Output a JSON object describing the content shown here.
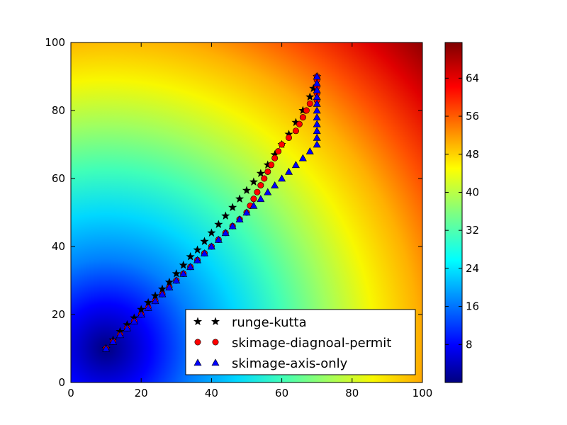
{
  "chart_data": {
    "type": "scatter",
    "title": "",
    "xlabel": "",
    "ylabel": "",
    "xlim": [
      0,
      100
    ],
    "ylim": [
      0,
      100
    ],
    "xticks": [
      "0",
      "20",
      "40",
      "60",
      "80",
      "100"
    ],
    "yticks": [
      "0",
      "20",
      "40",
      "60",
      "80",
      "100"
    ],
    "grid": false,
    "background": {
      "type": "heatmap",
      "description_value": "distance from point (10,10)",
      "colormap": "jet",
      "range": [
        0,
        127.3
      ]
    },
    "colorbar": {
      "ticks": [
        "8",
        "16",
        "24",
        "32",
        "40",
        "48",
        "56",
        "64"
      ],
      "range": [
        0,
        71.5
      ]
    },
    "legend_position": "lower-right",
    "series": [
      {
        "name": "runge-kutta",
        "marker": "star",
        "color": "#000000",
        "points": [
          [
            10,
            10
          ],
          [
            12,
            12.5
          ],
          [
            14,
            15
          ],
          [
            16,
            17
          ],
          [
            18,
            19
          ],
          [
            20,
            21.5
          ],
          [
            22,
            23.5
          ],
          [
            24,
            25.5
          ],
          [
            26,
            27.5
          ],
          [
            28,
            29.5
          ],
          [
            30,
            32
          ],
          [
            32,
            34.5
          ],
          [
            34,
            37
          ],
          [
            36,
            39
          ],
          [
            38,
            41.5
          ],
          [
            40,
            44
          ],
          [
            42,
            46.5
          ],
          [
            44,
            49
          ],
          [
            46,
            51.5
          ],
          [
            48,
            54
          ],
          [
            50,
            56.5
          ],
          [
            52,
            59
          ],
          [
            54,
            61.5
          ],
          [
            56,
            64
          ],
          [
            58,
            67
          ],
          [
            60,
            70
          ],
          [
            62,
            73
          ],
          [
            64,
            76.5
          ],
          [
            66,
            80
          ],
          [
            68,
            84
          ],
          [
            69,
            86.5
          ],
          [
            70,
            90
          ]
        ]
      },
      {
        "name": "skimage-diagnoal-permit",
        "marker": "circle",
        "color": "#ff0000",
        "points": [
          [
            10,
            10
          ],
          [
            12,
            12
          ],
          [
            14,
            14
          ],
          [
            16,
            16
          ],
          [
            18,
            18
          ],
          [
            20,
            20
          ],
          [
            22,
            22
          ],
          [
            24,
            24
          ],
          [
            26,
            26
          ],
          [
            28,
            28
          ],
          [
            30,
            30
          ],
          [
            32,
            32
          ],
          [
            34,
            34
          ],
          [
            36,
            36
          ],
          [
            38,
            38
          ],
          [
            40,
            40
          ],
          [
            42,
            42
          ],
          [
            44,
            44
          ],
          [
            46,
            46
          ],
          [
            48,
            48
          ],
          [
            50,
            50
          ],
          [
            51,
            52
          ],
          [
            52,
            54
          ],
          [
            53,
            56
          ],
          [
            54,
            58
          ],
          [
            55,
            60
          ],
          [
            56,
            62
          ],
          [
            57,
            64
          ],
          [
            58,
            66
          ],
          [
            59,
            68
          ],
          [
            60,
            70
          ],
          [
            62,
            72
          ],
          [
            64,
            74
          ],
          [
            65,
            76
          ],
          [
            66,
            78
          ],
          [
            67,
            80
          ],
          [
            68,
            82
          ],
          [
            70,
            83
          ],
          [
            70,
            85
          ],
          [
            70,
            87
          ],
          [
            70,
            89
          ],
          [
            70,
            90
          ]
        ]
      },
      {
        "name": "skimage-axis-only",
        "marker": "triangle",
        "color": "#0000ff",
        "points": [
          [
            10,
            10
          ],
          [
            12,
            12
          ],
          [
            14,
            14
          ],
          [
            16,
            16
          ],
          [
            18,
            18
          ],
          [
            20,
            20
          ],
          [
            22,
            22
          ],
          [
            24,
            24
          ],
          [
            26,
            26
          ],
          [
            28,
            28
          ],
          [
            30,
            30
          ],
          [
            32,
            32
          ],
          [
            34,
            34
          ],
          [
            36,
            36
          ],
          [
            38,
            38
          ],
          [
            40,
            40
          ],
          [
            42,
            42
          ],
          [
            44,
            44
          ],
          [
            46,
            46
          ],
          [
            48,
            48
          ],
          [
            50,
            50
          ],
          [
            52,
            52
          ],
          [
            54,
            54
          ],
          [
            56,
            56
          ],
          [
            58,
            58
          ],
          [
            60,
            60
          ],
          [
            62,
            62
          ],
          [
            64,
            64
          ],
          [
            66,
            66
          ],
          [
            68,
            68
          ],
          [
            70,
            70
          ],
          [
            70,
            72
          ],
          [
            70,
            74
          ],
          [
            70,
            76
          ],
          [
            70,
            78
          ],
          [
            70,
            80
          ],
          [
            70,
            82
          ],
          [
            70,
            84
          ],
          [
            70,
            86
          ],
          [
            70,
            88
          ],
          [
            70,
            90
          ]
        ]
      }
    ]
  }
}
